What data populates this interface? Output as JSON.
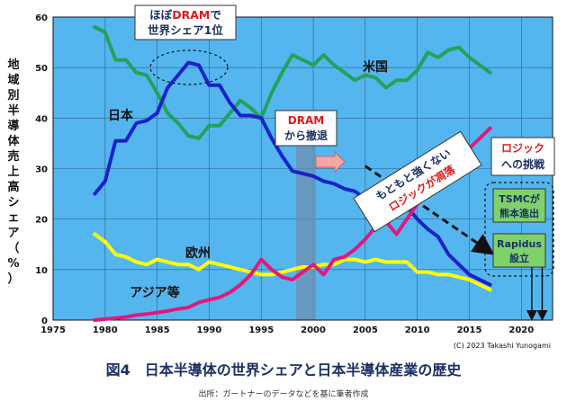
{
  "chart_data": {
    "type": "line",
    "title": "図4　日本半導体の世界シェアと日本半導体産業の歴史",
    "source_note": "出所：ガートナーのデータなどを基に筆者作成",
    "copyright": "(C) 2023 Takashi Yunogami",
    "ylabel": "地域別半導体売上高シェア（%）",
    "xlabel": "",
    "xlim": [
      1975,
      2023
    ],
    "ylim": [
      0,
      60
    ],
    "xticks": [
      1975,
      1980,
      1985,
      1990,
      1995,
      2000,
      2005,
      2010,
      2015,
      2020
    ],
    "yticks": [
      0,
      10,
      20,
      30,
      40,
      50,
      60
    ],
    "grid": true,
    "legend": "none (series labeled on chart)",
    "series": [
      {
        "name": "米国",
        "color": "#21a35a",
        "x": [
          1979,
          1980,
          1981,
          1982,
          1983,
          1984,
          1985,
          1986,
          1987,
          1988,
          1989,
          1990,
          1991,
          1992,
          1993,
          1994,
          1995,
          1996,
          1997,
          1998,
          1999,
          2000,
          2001,
          2002,
          2003,
          2004,
          2005,
          2006,
          2007,
          2008,
          2009,
          2010,
          2011,
          2012,
          2013,
          2014,
          2015,
          2016,
          2017
        ],
        "values": [
          58,
          57,
          51.5,
          51.5,
          49,
          48.5,
          45,
          41,
          39,
          36.5,
          36,
          38.5,
          38.5,
          41,
          43.5,
          42,
          40,
          45,
          49,
          52.5,
          51.5,
          50.5,
          52.5,
          50.5,
          49,
          47.5,
          48.5,
          48,
          46,
          47.5,
          47.5,
          49.5,
          53,
          52,
          53.5,
          54,
          52,
          50.5,
          49
        ]
      },
      {
        "name": "日本",
        "color": "#1a22c8",
        "x": [
          1979,
          1980,
          1981,
          1982,
          1983,
          1984,
          1985,
          1986,
          1987,
          1988,
          1989,
          1990,
          1991,
          1992,
          1993,
          1994,
          1995,
          1996,
          1997,
          1998,
          1999,
          2000,
          2001,
          2002,
          2003,
          2004,
          2005,
          2006,
          2007,
          2008,
          2009,
          2010,
          2011,
          2012,
          2013,
          2014,
          2015,
          2016,
          2017
        ],
        "values": [
          25,
          27.5,
          35.5,
          35.5,
          39,
          39.5,
          41,
          46,
          48.5,
          51,
          50.5,
          46.5,
          46.5,
          43,
          40.5,
          40.5,
          40,
          36,
          32.5,
          29.5,
          29,
          28.5,
          27.5,
          27,
          26,
          25.5,
          24,
          23,
          22.5,
          23,
          22.5,
          20,
          18,
          16.5,
          13,
          11,
          9,
          8,
          7
        ]
      },
      {
        "name": "欧州",
        "color": "#ffff00",
        "x": [
          1979,
          1980,
          1981,
          1982,
          1983,
          1984,
          1985,
          1986,
          1987,
          1988,
          1989,
          1990,
          1991,
          1992,
          1993,
          1994,
          1995,
          1996,
          1997,
          1998,
          1999,
          2000,
          2001,
          2002,
          2003,
          2004,
          2005,
          2006,
          2007,
          2008,
          2009,
          2010,
          2011,
          2012,
          2013,
          2014,
          2015,
          2016,
          2017
        ],
        "values": [
          17,
          15.5,
          13,
          12.5,
          11.5,
          11,
          12,
          11.5,
          11,
          11,
          10,
          11.5,
          11,
          10.5,
          10,
          9.5,
          9,
          9,
          9.5,
          10,
          10.5,
          10.5,
          11,
          11,
          12,
          12,
          11.5,
          12,
          11.5,
          11.5,
          11.5,
          9.5,
          9.5,
          9,
          9,
          8.5,
          8,
          7,
          6
        ]
      },
      {
        "name": "アジア等",
        "color": "#e0197d",
        "x": [
          1979,
          1980,
          1981,
          1982,
          1983,
          1984,
          1985,
          1986,
          1987,
          1988,
          1989,
          1990,
          1991,
          1992,
          1993,
          1994,
          1995,
          1996,
          1997,
          1998,
          1999,
          2000,
          2001,
          2002,
          2003,
          2004,
          2005,
          2006,
          2007,
          2008,
          2009,
          2010,
          2011,
          2012,
          2013,
          2014,
          2015,
          2016,
          2017
        ],
        "values": [
          0,
          0.2,
          0.4,
          0.6,
          1,
          1.2,
          1.5,
          1.8,
          2.2,
          2.5,
          3.5,
          4,
          4.5,
          5.5,
          7,
          9,
          12,
          10,
          8.5,
          8,
          9.5,
          11,
          9,
          12,
          12.5,
          14,
          16,
          18.5,
          19.5,
          17,
          20,
          23,
          25,
          28,
          30,
          32,
          34,
          36,
          38
        ]
      }
    ],
    "annotations": [
      {
        "text": "ほぼDRAMで",
        "highlight": "DRAM",
        "prefix": "ほぼ",
        "suffix": "で"
      },
      {
        "text": "世界シェア1位"
      },
      {
        "text": "DRAM"
      },
      {
        "text": "から撤退"
      },
      {
        "text": "もともと強くない"
      },
      {
        "text": "ロジックが凋落"
      },
      {
        "text": "ロジック"
      },
      {
        "text": "への挑戦"
      },
      {
        "text": "TSMCが"
      },
      {
        "text": "熊本進出"
      },
      {
        "text": "Rapidus"
      },
      {
        "text": "設立"
      }
    ],
    "series_labels": [
      "米国",
      "日本",
      "欧州",
      "アジア等"
    ]
  }
}
